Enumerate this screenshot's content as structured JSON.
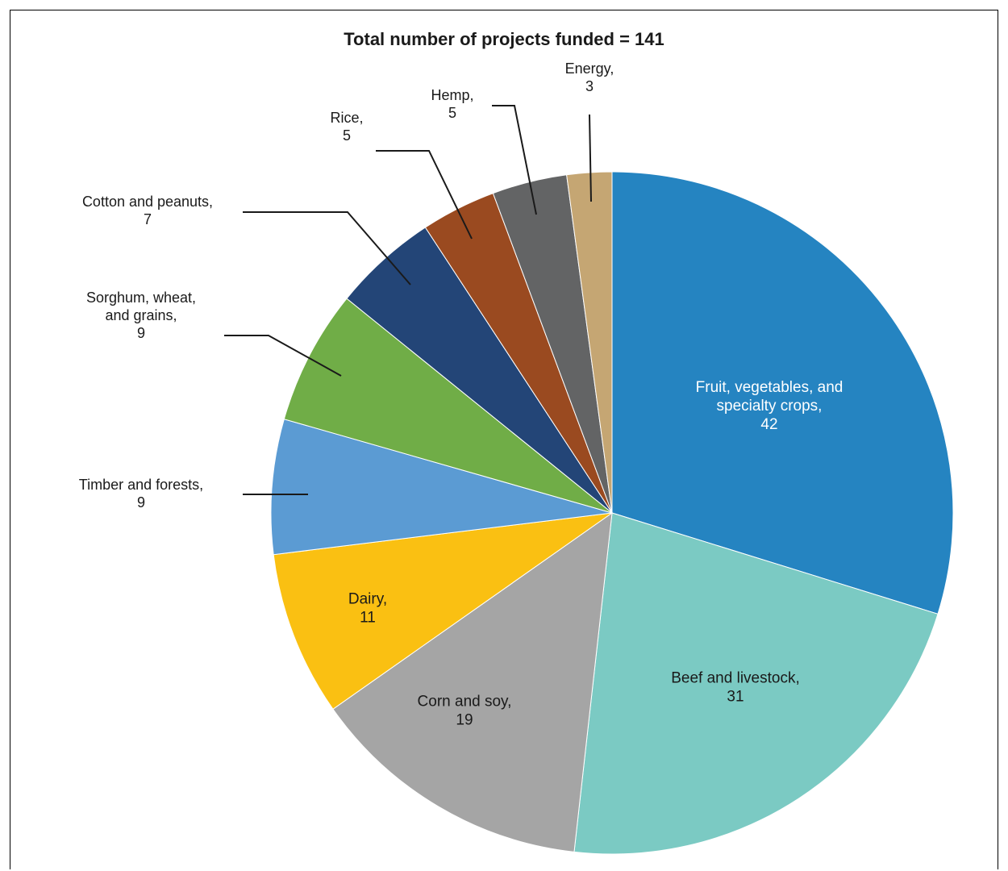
{
  "chart_data": {
    "type": "pie",
    "title": "Total number of projects funded = 141",
    "slices": [
      {
        "name": "Fruit, vegetables, and specialty crops",
        "value": 42,
        "color": "#2584c1",
        "label_lines": [
          "Fruit, vegetables, and",
          "specialty crops,",
          "42"
        ],
        "text_color": "#ffffff"
      },
      {
        "name": "Beef and livestock",
        "value": 31,
        "color": "#7bcac3",
        "label_lines": [
          "Beef and livestock,",
          "31"
        ],
        "text_color": "#1a1a1a"
      },
      {
        "name": "Corn and soy",
        "value": 19,
        "color": "#a5a5a5",
        "label_lines": [
          "Corn and soy,",
          "19"
        ],
        "text_color": "#1a1a1a"
      },
      {
        "name": "Dairy",
        "value": 11,
        "color": "#fac012",
        "label_lines": [
          "Dairy,",
          "11"
        ],
        "text_color": "#1a1a1a"
      },
      {
        "name": "Timber and forests",
        "value": 9,
        "color": "#5b9bd3",
        "label_lines": [
          "Timber and forests,",
          "9"
        ],
        "text_color": "#1a1a1a"
      },
      {
        "name": "Sorghum, wheat, and grains",
        "value": 9,
        "color": "#70ad47",
        "label_lines": [
          "Sorghum, wheat,",
          "and grains,",
          "9"
        ],
        "text_color": "#1a1a1a"
      },
      {
        "name": "Cotton and peanuts",
        "value": 7,
        "color": "#234577",
        "label_lines": [
          "Cotton and peanuts,",
          "7"
        ],
        "text_color": "#1a1a1a"
      },
      {
        "name": "Rice",
        "value": 5,
        "color": "#9a4a20",
        "label_lines": [
          "Rice,",
          "5"
        ],
        "text_color": "#1a1a1a"
      },
      {
        "name": "Hemp",
        "value": 5,
        "color": "#636465",
        "label_lines": [
          "Hemp,",
          "5"
        ],
        "text_color": "#1a1a1a"
      },
      {
        "name": "Energy",
        "value": 3,
        "color": "#c5a673",
        "label_lines": [
          "Energy,",
          "3"
        ],
        "text_color": "#1a1a1a"
      }
    ]
  }
}
